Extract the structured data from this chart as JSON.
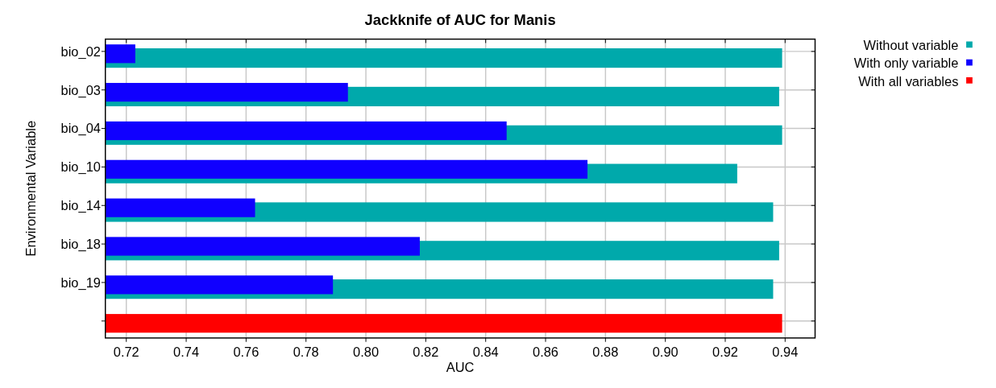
{
  "chart_data": {
    "type": "bar",
    "orientation": "horizontal",
    "title": "Jackknife of AUC for Manis",
    "xlabel": "AUC",
    "ylabel": "Environmental Variable",
    "categories": [
      "bio_02",
      "bio_03",
      "bio_04",
      "bio_10",
      "bio_14",
      "bio_18",
      "bio_19",
      null
    ],
    "series": [
      {
        "name": "Without variable",
        "color": "#00a9ab",
        "values": [
          0.939,
          0.938,
          0.939,
          0.924,
          0.936,
          0.938,
          0.936,
          null
        ]
      },
      {
        "name": "With only variable",
        "color": "#1000ff",
        "values": [
          0.723,
          0.794,
          0.847,
          0.874,
          0.763,
          0.818,
          0.789,
          null
        ]
      },
      {
        "name": "With all variables",
        "color": "#ff0000",
        "values": [
          null,
          null,
          null,
          null,
          null,
          null,
          null,
          0.939
        ]
      }
    ],
    "xlim": [
      0.713,
      0.95
    ],
    "xticks": [
      {
        "value": 0.72,
        "label": "0.72"
      },
      {
        "value": 0.74,
        "label": "0.74"
      },
      {
        "value": 0.76,
        "label": "0.76"
      },
      {
        "value": 0.78,
        "label": "0.78"
      },
      {
        "value": 0.8,
        "label": "0.80"
      },
      {
        "value": 0.82,
        "label": "0.82"
      },
      {
        "value": 0.84,
        "label": "0.84"
      },
      {
        "value": 0.86,
        "label": "0.86"
      },
      {
        "value": 0.88,
        "label": "0.88"
      },
      {
        "value": 0.9,
        "label": "0.90"
      },
      {
        "value": 0.92,
        "label": "0.92"
      },
      {
        "value": 0.94,
        "label": "0.94"
      }
    ],
    "grid": true,
    "legend": "top right"
  }
}
